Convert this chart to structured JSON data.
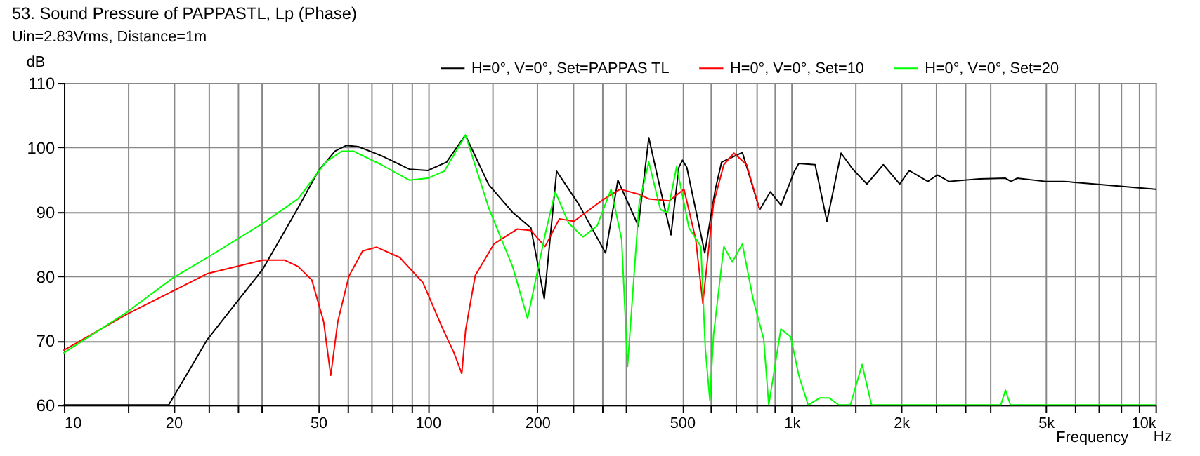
{
  "chart_data": {
    "type": "line",
    "title": "53. Sound Pressure of PAPPASTL, Lp (Phase)",
    "subtitle": "Uin=2.83Vrms, Distance=1m",
    "xlabel": "Frequency",
    "ylabel": "dB",
    "annotations": [
      "Hz"
    ],
    "log": "x",
    "grid": true,
    "legend": "top",
    "line_style": "solid",
    "marker": "none",
    "xlim": [
      10,
      10000
    ],
    "ylim": [
      60,
      110
    ],
    "yticks": [
      60,
      70,
      80,
      90,
      100,
      110
    ],
    "xticks": [
      10,
      {
        "value": 15,
        "label": null
      },
      20,
      {
        "value": 25,
        "label": null
      },
      {
        "value": 30,
        "label": null
      },
      {
        "value": 35,
        "label": null
      },
      50,
      {
        "value": 60,
        "label": null
      },
      {
        "value": 70,
        "label": null
      },
      {
        "value": 80,
        "label": null
      },
      {
        "value": 90,
        "label": null
      },
      100,
      {
        "value": 150,
        "label": null
      },
      200,
      {
        "value": 250,
        "label": null
      },
      {
        "value": 300,
        "label": null
      },
      {
        "value": 350,
        "label": null
      },
      500,
      {
        "value": 600,
        "label": null
      },
      {
        "value": 700,
        "label": null
      },
      {
        "value": 800,
        "label": null
      },
      {
        "value": 900,
        "label": null
      },
      {
        "value": 1000,
        "label": "1k"
      },
      {
        "value": 1500,
        "label": null
      },
      {
        "value": 2000,
        "label": "2k"
      },
      {
        "value": 2500,
        "label": null
      },
      {
        "value": 3000,
        "label": null
      },
      {
        "value": 3500,
        "label": null
      },
      {
        "value": 5000,
        "label": "5k"
      },
      {
        "value": 6000,
        "label": null
      },
      {
        "value": 7000,
        "label": null
      },
      {
        "value": 8000,
        "label": null
      },
      {
        "value": 9000,
        "label": null
      },
      {
        "value": 10000,
        "label": "10k"
      }
    ],
    "series": [
      {
        "name": "H=0°, V=0°, Set=PAPPAS TL",
        "color": "#000000",
        "x": [
          10,
          19.4,
          24.8,
          35.2,
          44,
          50,
          55.6,
          59.8,
          64.4,
          74.5,
          89,
          100,
          112.6,
          126.8,
          147,
          171,
          192,
          209,
          226,
          259,
          308,
          333,
          379,
          405,
          430,
          466,
          490,
          501,
          515,
          577,
          617,
          642,
          732,
          817,
          874,
          935,
          1018,
          1046,
          1160,
          1250,
          1367,
          1472,
          1610,
          1786,
          1982,
          2104,
          2367,
          2514,
          2708,
          3285,
          3870,
          4006,
          4166,
          4984,
          5617,
          7136,
          8659,
          10000
        ],
        "values": [
          60,
          60,
          70.2,
          81.1,
          90.6,
          96.3,
          99.4,
          100.3,
          100.1,
          98.7,
          96.6,
          96.4,
          97.7,
          101.9,
          94.2,
          89.9,
          87.5,
          76.5,
          96.3,
          91.3,
          83.6,
          94.9,
          87.8,
          101.5,
          94.9,
          86.4,
          96.9,
          98,
          96.9,
          83.6,
          93.5,
          97.7,
          99.2,
          90.3,
          93.1,
          91,
          96.3,
          97.5,
          97.3,
          88.5,
          99.1,
          96.6,
          94.3,
          97.3,
          94.3,
          96.4,
          94.7,
          95.7,
          94.7,
          95.1,
          95.2,
          94.7,
          95.2,
          94.7,
          94.7,
          94.2,
          93.8,
          93.5
        ]
      },
      {
        "name": "H=0°, V=0°, Set=10",
        "color": "#ff0000",
        "x": [
          10,
          14.9,
          24.8,
          35.2,
          40.3,
          44,
          48,
          51.7,
          54.1,
          56.6,
          60.7,
          66.2,
          72.4,
          83.7,
          97,
          109,
          118,
          124,
          127,
          135,
          152,
          176,
          192,
          210,
          230,
          252,
          300,
          338,
          381,
          405,
          461,
          506,
          545,
          570,
          610,
          651,
          694,
          752,
          817
        ],
        "values": [
          68.5,
          74.1,
          80.4,
          82.5,
          82.5,
          81.5,
          79.4,
          73,
          64.6,
          73,
          80,
          83.9,
          84.5,
          82.9,
          79,
          72.3,
          68.1,
          64.9,
          71.6,
          80.1,
          85,
          87.3,
          87.1,
          84.6,
          88.9,
          88.5,
          91.7,
          93.5,
          92.7,
          92,
          91.7,
          93.5,
          85.7,
          75.8,
          91.3,
          97.3,
          99.1,
          97.3,
          90.3
        ]
      },
      {
        "name": "H=0°, V=0°, Set=20",
        "color": "#00ff00",
        "x": [
          10,
          14.9,
          19.9,
          24.8,
          35.2,
          44,
          52.4,
          58,
          62.5,
          74.5,
          89,
          100,
          111,
          127,
          147,
          171,
          188,
          210,
          224,
          244,
          267,
          292,
          319,
          341,
          354,
          381,
          405,
          436,
          456,
          483,
          522,
          563,
          579,
          596,
          610,
          651,
          687,
          732,
          783,
          838,
          865,
          934,
          994,
          1046,
          1110,
          1196,
          1268,
          1346,
          1450,
          1562,
          1658,
          3757,
          3870,
          3993,
          10000
        ],
        "values": [
          68.1,
          74.4,
          79.7,
          82.9,
          88.2,
          92,
          97.7,
          99.4,
          99.4,
          97.3,
          94.9,
          95.2,
          96.3,
          101.9,
          90.6,
          81.5,
          73.4,
          86.4,
          93.1,
          88.2,
          86.1,
          87.8,
          93.5,
          85.7,
          66,
          91.3,
          97.7,
          90.3,
          89.9,
          97,
          87.5,
          84.6,
          68.8,
          60.7,
          70.9,
          84.6,
          82.2,
          85,
          76.5,
          70.2,
          60,
          71.8,
          70.6,
          64.6,
          60,
          61.1,
          61.1,
          60,
          60,
          66.3,
          60,
          60,
          62.3,
          60,
          60
        ]
      }
    ]
  }
}
